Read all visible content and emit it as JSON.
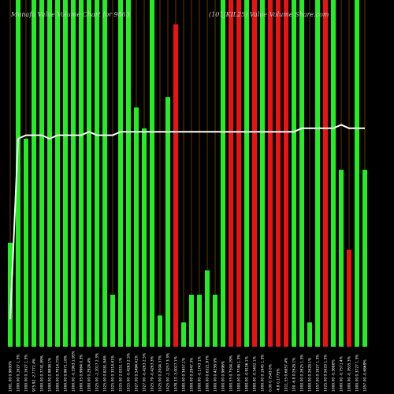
{
  "title_left": "Munafa  Value Volume Chart for 9863",
  "title_right": "(101JKIL25) Value Volume Share.com",
  "chart_data": {
    "type": "bar",
    "title": "Munafa  Value Volume Chart for 9863",
    "subtitle": "(101JKIL25) Value Volume Share.com",
    "categories": [
      "1001.00 0.9600%",
      "1000.00 0.1627 1.3%",
      "1000.00 0.1627 1.3%",
      "975.92 -2.7772.4%",
      "1000.00 0.7741.89%",
      "1000.00 0.9938 1%",
      "1000.00 0.7914.75%",
      "1000.00 0.9671.18%",
      "1000.00 -0.1963 1.95%",
      "1000.35 0.9964 0.3%",
      "1000.00 0.2924.4%",
      "1025.00 -2.2017 2.3%",
      "1025.00 0.8281.94%",
      "1025.00 0.3314.41%",
      "1025.00 2.0351 1%",
      "1015.00 -0.4263 2.5%",
      "1027.00 0.5494.41%",
      "1027.00 -0.4263 2.5%",
      "1025.79 -0.4263.3%",
      "1025.00 0.2004.37%",
      "1025.00 -2.3257 3.3%",
      "1078.33 -3.0027.1%",
      "1000.00 0.3457.1%",
      "1000.00 0.2947.3%",
      "1000.00 -0.1743 1%",
      "1000.00 0.6321.97%",
      "1000.00 0.4258 0%",
      "1000.00 0.9696%",
      "1000.55 0.7504.29%",
      "1000.00 0.7746 1.3%",
      "1000.00 -0.9136 1%",
      "1000.00 -0.5432 1%",
      "1000.00 0.1645 1.3%",
      "0.00 0.7543.0%",
      "-6.8 0.1775%",
      "1011.55 0.6857.4%",
      "100 -6.8 0.2628.1%",
      "1000.00 0.2625 1.3%",
      "1000.00 0.2628.1%",
      "1057.00 0.1827 1.3%",
      "1025.00 0.5620 1.5%",
      "1000.00 -0.3680%",
      "1000.00 -0.7571.4%",
      "1000.00 -0.7635.3%",
      "1000.00 0.3727 1.3%",
      "1057.00 -0.6869%"
    ],
    "values": [
      30,
      100,
      60,
      100,
      100,
      100,
      100,
      100,
      100,
      100,
      100,
      100,
      100,
      15,
      100,
      100,
      69,
      63,
      100,
      9,
      72,
      93,
      7,
      15,
      15,
      22,
      15,
      100,
      100,
      100,
      100,
      100,
      100,
      100,
      100,
      100,
      100,
      100,
      7,
      100,
      100,
      100,
      51,
      28,
      100,
      51
    ],
    "colors": [
      "g",
      "g",
      "g",
      "g",
      "g",
      "g",
      "g",
      "g",
      "g",
      "g",
      "g",
      "g",
      "g",
      "g",
      "g",
      "g",
      "g",
      "g",
      "g",
      "g",
      "g",
      "r",
      "g",
      "g",
      "g",
      "g",
      "g",
      "g",
      "r",
      "r",
      "g",
      "r",
      "g",
      "r",
      "r",
      "r",
      "g",
      "g",
      "g",
      "g",
      "r",
      "g",
      "g",
      "r",
      "g",
      "g"
    ],
    "line": [
      8,
      60,
      61,
      61,
      61,
      60,
      61,
      61,
      61,
      61,
      62,
      61,
      61,
      61,
      62,
      62,
      62,
      62,
      62,
      62,
      62,
      62,
      62,
      62,
      62,
      62,
      62,
      62,
      62,
      62,
      62,
      62,
      62,
      62,
      62,
      62,
      62,
      63,
      63,
      63,
      63,
      63,
      64,
      63,
      63,
      63
    ],
    "bar_colors": {
      "g": "#22ee22",
      "r": "#ee1111"
    },
    "line_color": "#ffffff",
    "ylim": [
      0,
      100
    ],
    "grid": "vertical",
    "legend": "none"
  }
}
